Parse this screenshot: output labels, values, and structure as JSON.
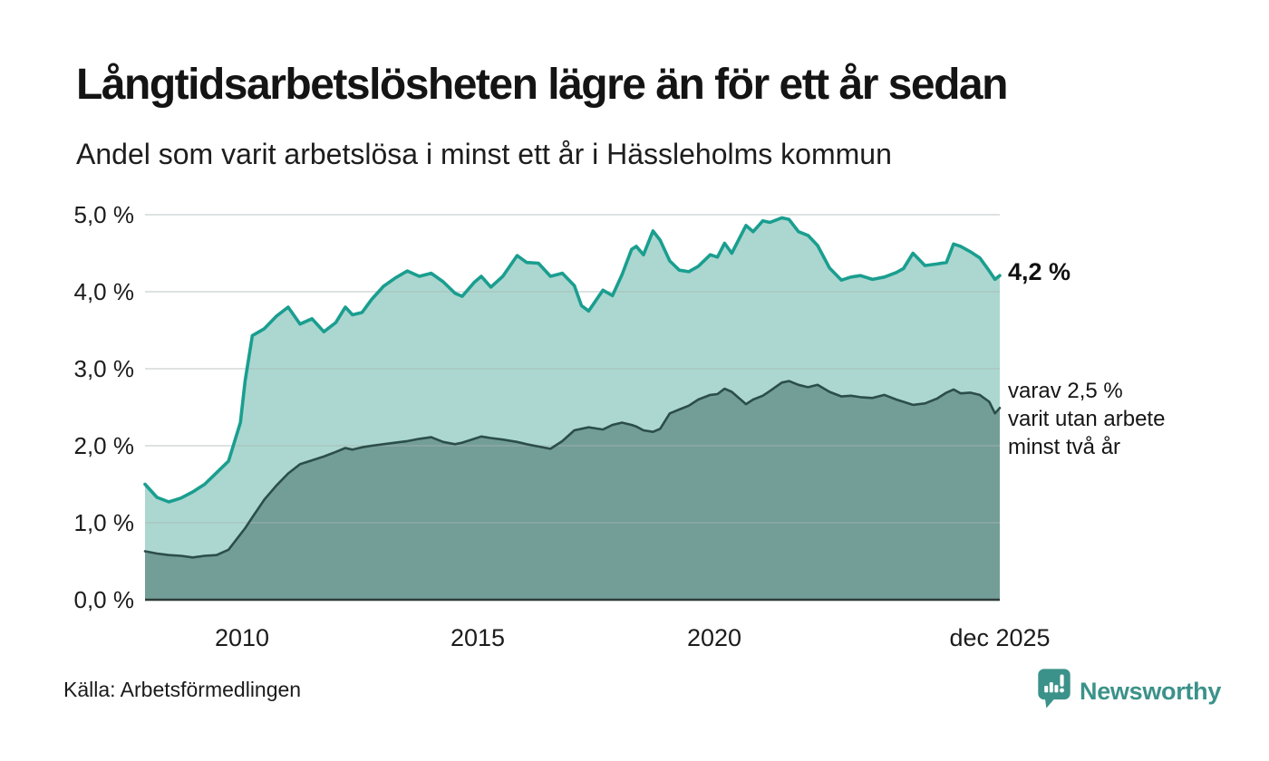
{
  "colors": {
    "series1_line": "#1a9e8f",
    "series1_fill": "#abd7d0",
    "series2_line": "#2c4e4a",
    "series2_fill": "#739e98",
    "grid": "#aab4b1",
    "axis": "#2e3b38",
    "brand": "#3b928a",
    "title_text": "#141414"
  },
  "chart_data": {
    "type": "area",
    "title": "Långtidsarbetslösheten lägre än för ett år sedan",
    "subtitle": "Andel som varit arbetslösa i minst ett år i Hässleholms kommun",
    "grid": true,
    "legend_position": "direct-labels-at-line-end",
    "x_axis": {
      "range": [
        2008.0,
        2025.92
      ],
      "unit": "year",
      "ticks": [
        {
          "label": "2010",
          "x": 2010
        },
        {
          "label": "2015",
          "x": 2015
        },
        {
          "label": "2020",
          "x": 2020
        },
        {
          "label": "dec 2025",
          "x": 2025.92
        }
      ]
    },
    "y_axis": {
      "range": [
        0,
        5
      ],
      "unit": "%",
      "ticks": [
        {
          "label": "5,0 %",
          "value": 5
        },
        {
          "label": "4,0 %",
          "value": 4
        },
        {
          "label": "3,0 %",
          "value": 3
        },
        {
          "label": "2,0 %",
          "value": 2
        },
        {
          "label": "1,0 %",
          "value": 1
        },
        {
          "label": "0,0 %",
          "value": 0
        }
      ]
    },
    "x": [
      2008.0,
      2008.25,
      2008.5,
      2008.75,
      2009.0,
      2009.25,
      2009.5,
      2009.75,
      2010.0,
      2010.1,
      2010.25,
      2010.5,
      2010.75,
      2011.0,
      2011.25,
      2011.5,
      2011.75,
      2012.0,
      2012.2,
      2012.35,
      2012.55,
      2012.75,
      2013.0,
      2013.25,
      2013.5,
      2013.75,
      2014.0,
      2014.25,
      2014.5,
      2014.65,
      2014.9,
      2015.05,
      2015.25,
      2015.5,
      2015.8,
      2016.0,
      2016.25,
      2016.5,
      2016.75,
      2017.0,
      2017.15,
      2017.3,
      2017.6,
      2017.8,
      2018.0,
      2018.2,
      2018.3,
      2018.45,
      2018.65,
      2018.8,
      2019.0,
      2019.2,
      2019.4,
      2019.6,
      2019.85,
      2020.0,
      2020.15,
      2020.3,
      2020.6,
      2020.75,
      2020.95,
      2021.1,
      2021.35,
      2021.5,
      2021.7,
      2021.9,
      2022.1,
      2022.35,
      2022.6,
      2022.8,
      2023.0,
      2023.25,
      2023.5,
      2023.75,
      2023.9,
      2024.1,
      2024.35,
      2024.6,
      2024.8,
      2024.95,
      2025.1,
      2025.3,
      2025.5,
      2025.7,
      2025.82,
      2025.92
    ],
    "series": [
      {
        "name": "Andel som varit arbetslösa i minst ett år",
        "latest_value": 4.2,
        "values": [
          1.5,
          1.33,
          1.27,
          1.32,
          1.4,
          1.5,
          1.65,
          1.8,
          2.3,
          2.85,
          3.43,
          3.52,
          3.68,
          3.8,
          3.58,
          3.65,
          3.48,
          3.6,
          3.8,
          3.7,
          3.73,
          3.9,
          4.07,
          4.18,
          4.27,
          4.2,
          4.24,
          4.13,
          3.98,
          3.94,
          4.12,
          4.2,
          4.06,
          4.2,
          4.47,
          4.38,
          4.37,
          4.2,
          4.24,
          4.08,
          3.82,
          3.75,
          4.02,
          3.95,
          4.22,
          4.55,
          4.59,
          4.48,
          4.79,
          4.67,
          4.4,
          4.28,
          4.26,
          4.33,
          4.48,
          4.45,
          4.63,
          4.5,
          4.86,
          4.78,
          4.92,
          4.9,
          4.96,
          4.94,
          4.78,
          4.73,
          4.6,
          4.31,
          4.15,
          4.19,
          4.21,
          4.16,
          4.19,
          4.25,
          4.3,
          4.5,
          4.34,
          4.36,
          4.38,
          4.62,
          4.59,
          4.52,
          4.44,
          4.27,
          4.16,
          4.21
        ]
      },
      {
        "name": "Varav utan arbete i minst två år",
        "latest_value": 2.5,
        "values": [
          0.63,
          0.6,
          0.58,
          0.57,
          0.55,
          0.57,
          0.58,
          0.65,
          0.85,
          0.93,
          1.07,
          1.3,
          1.48,
          1.64,
          1.76,
          1.81,
          1.86,
          1.92,
          1.97,
          1.95,
          1.98,
          2.0,
          2.02,
          2.04,
          2.06,
          2.09,
          2.11,
          2.05,
          2.02,
          2.04,
          2.09,
          2.12,
          2.1,
          2.08,
          2.05,
          2.02,
          1.99,
          1.96,
          2.06,
          2.2,
          2.22,
          2.24,
          2.21,
          2.27,
          2.3,
          2.27,
          2.25,
          2.2,
          2.18,
          2.22,
          2.42,
          2.47,
          2.52,
          2.6,
          2.66,
          2.67,
          2.74,
          2.7,
          2.54,
          2.6,
          2.65,
          2.71,
          2.82,
          2.84,
          2.79,
          2.76,
          2.79,
          2.7,
          2.64,
          2.65,
          2.63,
          2.62,
          2.66,
          2.6,
          2.57,
          2.53,
          2.55,
          2.61,
          2.69,
          2.73,
          2.68,
          2.69,
          2.66,
          2.57,
          2.42,
          2.49
        ]
      }
    ],
    "annotations": {
      "latest_total": "4,2 %",
      "secondary": [
        "varav 2,5 %",
        "varit utan arbete",
        "minst två år"
      ]
    }
  },
  "footer": {
    "source": "Källa: Arbetsförmedlingen",
    "brand": "Newsworthy",
    "brand_icon": "bar-chart-speech-bubble"
  }
}
